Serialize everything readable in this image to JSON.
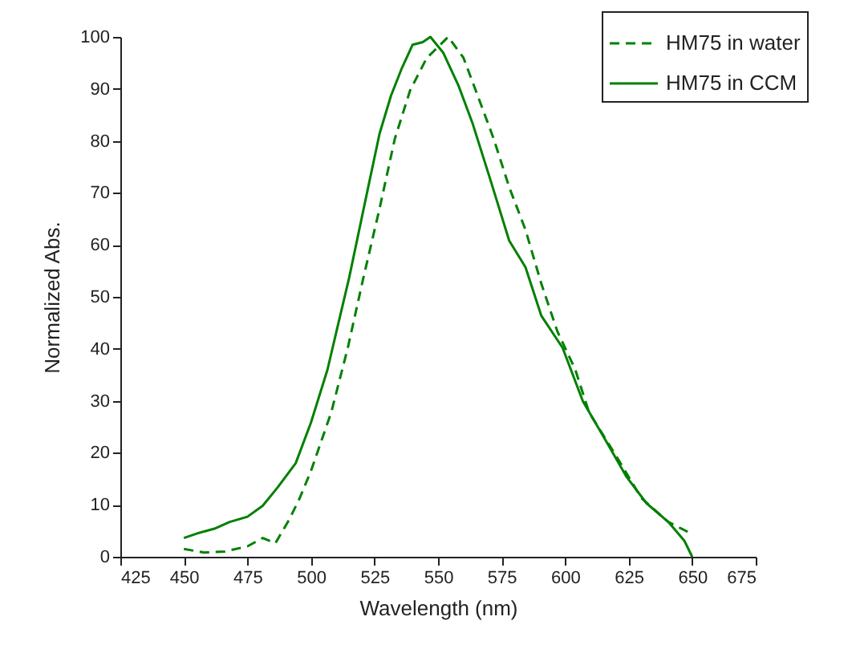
{
  "chart_data": {
    "type": "line",
    "xlabel": "Wavelength (nm)",
    "ylabel": "Normalized Abs.",
    "xlim": [
      425,
      675
    ],
    "xticks": [
      425,
      450,
      475,
      500,
      525,
      550,
      575,
      600,
      625,
      650,
      675
    ],
    "ylim": [
      0,
      100
    ],
    "yticks": [
      0,
      10,
      20,
      30,
      40,
      50,
      60,
      70,
      80,
      90,
      100
    ],
    "grid": false,
    "legend": "top right",
    "series": [
      {
        "name": "HM75 in water",
        "color": "#008000",
        "line_style": "dashed",
        "x": [
          450,
          458,
          466,
          475,
          481,
          486,
          491.5,
          495.6,
          500,
          508,
          514.5,
          520.6,
          527,
          533,
          539,
          545.5,
          554,
          560,
          565.6,
          571.9,
          578,
          584.4,
          590.6,
          597,
          604,
          609.4,
          619.8,
          630,
          640.6,
          649
        ],
        "values": [
          1.5,
          0.8,
          1,
          2,
          3.6,
          2.6,
          7.2,
          11.3,
          16.5,
          27.8,
          40.2,
          53.6,
          67,
          80.4,
          89.7,
          95.9,
          100,
          96,
          88.7,
          80.4,
          71.1,
          62.9,
          52.6,
          43.3,
          36,
          27.8,
          19.6,
          11.3,
          6.7,
          4.6
        ]
      },
      {
        "name": "HM75 in CCM",
        "color": "#008000",
        "line_style": "solid",
        "x": [
          450,
          456,
          462,
          468,
          475,
          481,
          487,
          494,
          500,
          506.5,
          510.5,
          515,
          519,
          523,
          527,
          531.5,
          535.6,
          540,
          544,
          547,
          552,
          558,
          563.5,
          570.8,
          578,
          584.4,
          590.6,
          599,
          607,
          615.6,
          624,
          632,
          640.6,
          646.9,
          650
        ],
        "values": [
          3.6,
          4.6,
          5.4,
          6.7,
          7.7,
          9.8,
          13.4,
          18,
          25.8,
          36,
          44.3,
          53.6,
          62.9,
          72.2,
          81.4,
          88.7,
          93.8,
          98.5,
          99,
          100,
          97,
          90.7,
          83.5,
          72.2,
          60.8,
          55.7,
          46.4,
          40.2,
          29.9,
          22.7,
          15.5,
          10.3,
          6.7,
          3.1,
          0
        ]
      }
    ]
  }
}
